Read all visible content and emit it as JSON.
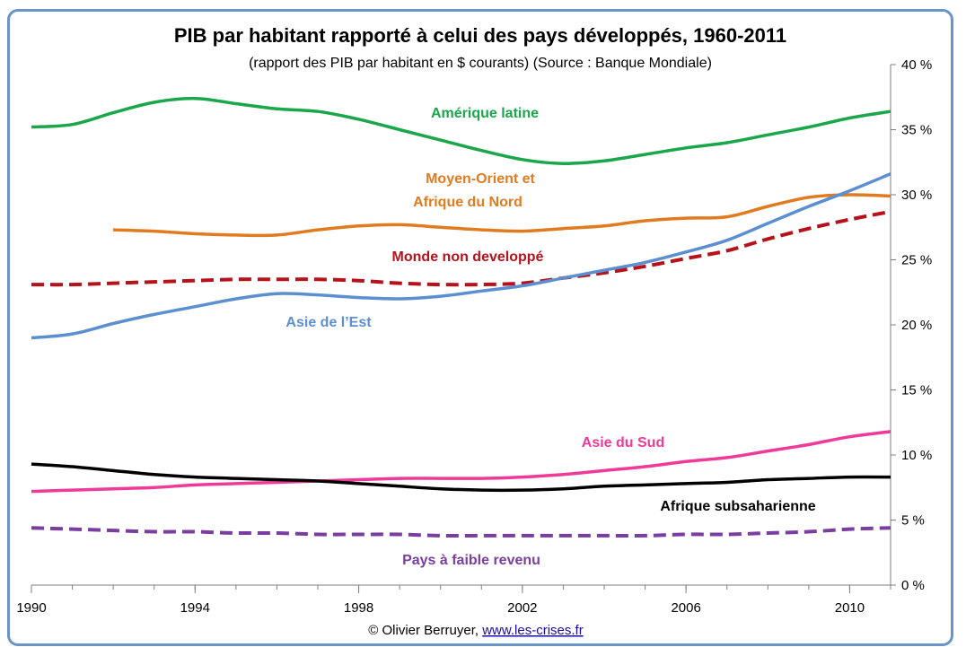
{
  "chart_data": {
    "type": "line",
    "title": "PIB par habitant  rapporté à celui des pays développés, 1960-2011",
    "subtitle": "(rapport des PIB par habitant en $ courants) (Source : Banque Mondiale)",
    "x_ticks": [
      "1990",
      "1994",
      "1998",
      "2002",
      "2006",
      "2010"
    ],
    "y_ticks": [
      "0 %",
      "5 %",
      "10 %",
      "15 %",
      "20 %",
      "25 %",
      "30 %",
      "35 %",
      "40 %"
    ],
    "xlim": [
      1990,
      2011
    ],
    "ylim": [
      0,
      40
    ],
    "y_axis_position": "right",
    "grid": false,
    "series": [
      {
        "name": "Amérique latine",
        "color": "#1aa64a",
        "dash": "solid",
        "x": [
          1990,
          1991,
          1992,
          1993,
          1994,
          1995,
          1996,
          1997,
          1998,
          1999,
          2000,
          2001,
          2002,
          2003,
          2004,
          2005,
          2006,
          2007,
          2008,
          2009,
          2010,
          2011
        ],
        "y": [
          35.2,
          35.4,
          36.3,
          37.1,
          37.4,
          37.0,
          36.6,
          36.4,
          35.8,
          35.0,
          34.2,
          33.4,
          32.7,
          32.4,
          32.6,
          33.1,
          33.6,
          34.0,
          34.6,
          35.2,
          35.9,
          36.4
        ]
      },
      {
        "name": "Moyen-Orient et",
        "name2": "Afrique du Nord",
        "color": "#e07b1f",
        "dash": "solid",
        "x": [
          1992,
          1993,
          1994,
          1995,
          1996,
          1997,
          1998,
          1999,
          2000,
          2001,
          2002,
          2003,
          2004,
          2005,
          2006,
          2007,
          2008,
          2009,
          2010,
          2011
        ],
        "y": [
          27.3,
          27.2,
          27.0,
          26.9,
          26.9,
          27.3,
          27.6,
          27.7,
          27.5,
          27.3,
          27.2,
          27.4,
          27.6,
          28.0,
          28.2,
          28.3,
          29.1,
          29.8,
          30.0,
          29.9
        ]
      },
      {
        "name": "Monde non developpé",
        "color": "#b5121b",
        "dash": "dashed",
        "x": [
          1990,
          1991,
          1992,
          1993,
          1994,
          1995,
          1996,
          1997,
          1998,
          1999,
          2000,
          2001,
          2002,
          2003,
          2004,
          2005,
          2006,
          2007,
          2008,
          2009,
          2010,
          2011
        ],
        "y": [
          23.1,
          23.1,
          23.2,
          23.3,
          23.4,
          23.5,
          23.5,
          23.5,
          23.4,
          23.2,
          23.1,
          23.1,
          23.2,
          23.6,
          24.0,
          24.5,
          25.1,
          25.7,
          26.6,
          27.4,
          28.1,
          28.7
        ]
      },
      {
        "name": "Asie de l’Est",
        "color": "#5b8fd0",
        "dash": "solid",
        "x": [
          1990,
          1991,
          1992,
          1993,
          1994,
          1995,
          1996,
          1997,
          1998,
          1999,
          2000,
          2001,
          2002,
          2003,
          2004,
          2005,
          2006,
          2007,
          2008,
          2009,
          2010,
          2011
        ],
        "y": [
          19.0,
          19.3,
          20.1,
          20.8,
          21.4,
          22.0,
          22.4,
          22.3,
          22.1,
          22.0,
          22.2,
          22.6,
          23.0,
          23.6,
          24.2,
          24.8,
          25.6,
          26.5,
          27.8,
          29.1,
          30.3,
          31.6
        ]
      },
      {
        "name": "Asie du Sud",
        "color": "#ee3b9a",
        "dash": "solid",
        "x": [
          1990,
          1991,
          1992,
          1993,
          1994,
          1995,
          1996,
          1997,
          1998,
          1999,
          2000,
          2001,
          2002,
          2003,
          2004,
          2005,
          2006,
          2007,
          2008,
          2009,
          2010,
          2011
        ],
        "y": [
          7.2,
          7.3,
          7.4,
          7.5,
          7.7,
          7.8,
          7.9,
          8.0,
          8.1,
          8.2,
          8.2,
          8.2,
          8.3,
          8.5,
          8.8,
          9.1,
          9.5,
          9.8,
          10.3,
          10.8,
          11.4,
          11.8
        ]
      },
      {
        "name": "Afrique subsaharienne",
        "color": "#000000",
        "dash": "solid",
        "x": [
          1990,
          1991,
          1992,
          1993,
          1994,
          1995,
          1996,
          1997,
          1998,
          1999,
          2000,
          2001,
          2002,
          2003,
          2004,
          2005,
          2006,
          2007,
          2008,
          2009,
          2010,
          2011
        ],
        "y": [
          9.3,
          9.1,
          8.8,
          8.5,
          8.3,
          8.2,
          8.1,
          8.0,
          7.8,
          7.6,
          7.4,
          7.3,
          7.3,
          7.4,
          7.6,
          7.7,
          7.8,
          7.9,
          8.1,
          8.2,
          8.3,
          8.3
        ]
      },
      {
        "name": "Pays à faible revenu",
        "color": "#7a3ea0",
        "dash": "dashed",
        "x": [
          1990,
          1991,
          1992,
          1993,
          1994,
          1995,
          1996,
          1997,
          1998,
          1999,
          2000,
          2001,
          2002,
          2003,
          2004,
          2005,
          2006,
          2007,
          2008,
          2009,
          2010,
          2011
        ],
        "y": [
          4.4,
          4.3,
          4.2,
          4.1,
          4.1,
          4.0,
          4.0,
          3.9,
          3.9,
          3.9,
          3.8,
          3.8,
          3.8,
          3.8,
          3.8,
          3.8,
          3.9,
          3.9,
          4.0,
          4.1,
          4.3,
          4.4
        ]
      }
    ]
  },
  "credit": {
    "prefix": "© Olivier Berruyer, ",
    "link": "www.les-crises.fr"
  }
}
